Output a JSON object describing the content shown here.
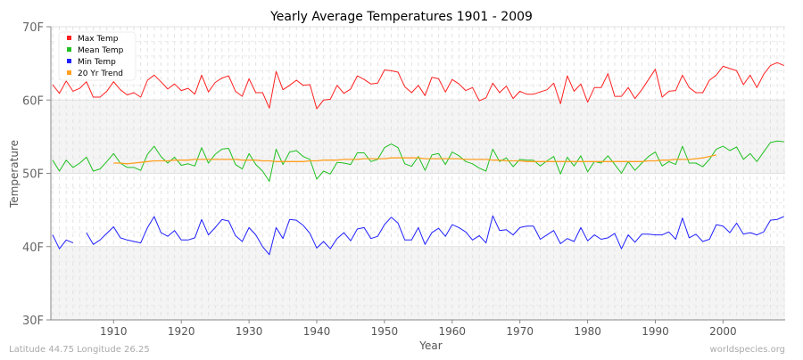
{
  "chart_data": {
    "type": "line",
    "title": "Yearly Average Temperatures 1901 - 2009",
    "xlabel": "Year",
    "ylabel": "Temperature",
    "xlim": [
      1901,
      2009
    ],
    "ylim": [
      30,
      70
    ],
    "x_ticks": [
      1910,
      1920,
      1930,
      1940,
      1950,
      1960,
      1970,
      1980,
      1990,
      2000
    ],
    "y_ticks": [
      {
        "value": 30,
        "label": "30F"
      },
      {
        "value": 40,
        "label": "40F"
      },
      {
        "value": 50,
        "label": "50F"
      },
      {
        "value": 60,
        "label": "60F"
      },
      {
        "value": 70,
        "label": "70F"
      }
    ],
    "grid": true,
    "legend_position": "top-left",
    "series": [
      {
        "name": "Max Temp",
        "color": "#ff2020",
        "start_year": 1901,
        "values": [
          62.1,
          60.9,
          62.6,
          61.2,
          61.6,
          62.5,
          60.4,
          60.4,
          61.2,
          62.5,
          61.4,
          60.7,
          61.0,
          60.4,
          62.7,
          63.4,
          62.5,
          61.5,
          62.2,
          61.3,
          61.6,
          60.8,
          63.4,
          61.1,
          62.4,
          63.0,
          63.3,
          61.2,
          60.5,
          62.9,
          61.0,
          61.0,
          58.9,
          63.9,
          61.4,
          62.0,
          62.7,
          62.0,
          62.1,
          58.8,
          60.0,
          60.1,
          62.0,
          60.9,
          61.5,
          63.3,
          62.8,
          62.2,
          62.3,
          64.1,
          64.0,
          63.8,
          61.8,
          61.0,
          62.0,
          60.6,
          63.1,
          62.9,
          61.1,
          62.8,
          62.2,
          61.3,
          61.7,
          59.9,
          60.3,
          62.3,
          61.0,
          61.9,
          60.2,
          61.2,
          60.8,
          60.8,
          61.1,
          61.4,
          62.3,
          59.5,
          63.3,
          61.2,
          62.2,
          59.7,
          61.7,
          61.7,
          63.6,
          60.5,
          60.5,
          61.7,
          60.2,
          61.4,
          62.8,
          64.2,
          60.4,
          61.2,
          61.3,
          63.4,
          61.7,
          61.0,
          61.0,
          62.7,
          63.4,
          64.6,
          64.3,
          64.0,
          62.1,
          63.4,
          61.7,
          63.5,
          64.7,
          65.1,
          64.7
        ]
      },
      {
        "name": "Mean Temp",
        "color": "#20c020",
        "start_year": 1901,
        "values": [
          51.8,
          50.3,
          51.8,
          50.8,
          51.4,
          52.2,
          50.3,
          50.6,
          51.6,
          52.7,
          51.4,
          50.8,
          50.8,
          50.4,
          52.6,
          53.7,
          52.3,
          51.4,
          52.2,
          51.1,
          51.3,
          51.0,
          53.5,
          51.4,
          52.6,
          53.3,
          53.4,
          51.2,
          50.6,
          52.7,
          51.2,
          50.3,
          48.9,
          53.3,
          51.2,
          52.9,
          53.1,
          52.3,
          51.9,
          49.2,
          50.3,
          49.9,
          51.5,
          51.4,
          51.2,
          52.8,
          52.8,
          51.6,
          51.9,
          53.5,
          54.0,
          53.5,
          51.3,
          50.95,
          52.3,
          50.4,
          52.5,
          52.7,
          51.2,
          52.9,
          52.4,
          51.6,
          51.3,
          50.7,
          50.3,
          53.3,
          51.6,
          52.1,
          50.9,
          51.9,
          51.8,
          51.8,
          51.0,
          51.7,
          52.3,
          49.9,
          52.2,
          51.0,
          52.4,
          50.2,
          51.6,
          51.4,
          52.4,
          51.2,
          50.0,
          51.6,
          50.4,
          51.4,
          52.3,
          52.9,
          51.0,
          51.6,
          51.2,
          53.7,
          51.4,
          51.4,
          50.9,
          51.9,
          53.3,
          53.7,
          53.1,
          53.6,
          51.9,
          52.7,
          51.6,
          52.9,
          54.2,
          54.4,
          54.3
        ]
      },
      {
        "name": "Min Temp",
        "color": "#2020ff",
        "start_year": 1901,
        "values": [
          41.6,
          39.7,
          40.9,
          40.5,
          null,
          41.9,
          40.3,
          40.9,
          41.8,
          42.7,
          41.2,
          40.9,
          40.7,
          40.5,
          42.6,
          44.1,
          41.9,
          41.4,
          42.2,
          40.9,
          40.9,
          41.2,
          43.7,
          41.6,
          42.6,
          43.7,
          43.5,
          41.5,
          40.7,
          42.6,
          41.6,
          40.0,
          38.9,
          42.6,
          41.1,
          43.7,
          43.6,
          42.9,
          41.8,
          39.8,
          40.7,
          39.7,
          41.1,
          41.9,
          40.8,
          42.4,
          42.6,
          41.1,
          41.4,
          43.0,
          44.0,
          43.2,
          40.9,
          40.9,
          42.6,
          40.3,
          41.9,
          42.5,
          41.4,
          43.0,
          42.6,
          42.0,
          40.9,
          41.5,
          40.5,
          44.2,
          42.2,
          42.3,
          41.6,
          42.6,
          42.8,
          42.8,
          41.0,
          41.6,
          42.2,
          40.4,
          41.1,
          40.7,
          42.6,
          40.8,
          41.6,
          41.0,
          41.2,
          41.8,
          39.7,
          41.6,
          40.6,
          41.7,
          41.7,
          41.6,
          41.6,
          42.0,
          41.0,
          43.9,
          41.2,
          41.7,
          40.7,
          41.0,
          43.0,
          42.8,
          41.9,
          43.2,
          41.7,
          41.9,
          41.6,
          42.0,
          43.6,
          43.7,
          44.1
        ]
      },
      {
        "name": "20 Yr Trend",
        "color": "#ffa020",
        "start_year": 1910,
        "values": [
          51.4,
          51.4,
          51.3,
          51.4,
          51.5,
          51.6,
          51.7,
          51.7,
          51.7,
          51.8,
          51.8,
          51.8,
          51.9,
          51.9,
          51.9,
          51.9,
          51.9,
          51.9,
          51.9,
          51.8,
          51.8,
          51.8,
          51.7,
          51.7,
          51.6,
          51.6,
          51.6,
          51.6,
          51.6,
          51.7,
          51.7,
          51.8,
          51.8,
          51.8,
          51.9,
          51.9,
          51.9,
          52.0,
          52.0,
          52.0,
          52.0,
          52.1,
          52.1,
          52.1,
          52.1,
          52.1,
          52.0,
          52.0,
          52.0,
          52.0,
          52.0,
          52.0,
          51.9,
          51.9,
          51.9,
          51.9,
          51.8,
          51.8,
          51.7,
          51.7,
          51.7,
          51.6,
          51.6,
          51.6,
          51.6,
          51.6,
          51.6,
          51.6,
          51.6,
          51.6,
          51.6,
          51.6,
          51.6,
          51.6,
          51.6,
          51.6,
          51.6,
          51.6,
          51.6,
          51.7,
          51.7,
          51.8,
          51.8,
          51.9,
          51.9,
          51.9,
          52.0,
          52.1,
          52.3,
          52.5
        ]
      }
    ]
  },
  "footer": {
    "location": "Latitude 44.75 Longitude 26.25",
    "source": "worldspecies.org"
  }
}
